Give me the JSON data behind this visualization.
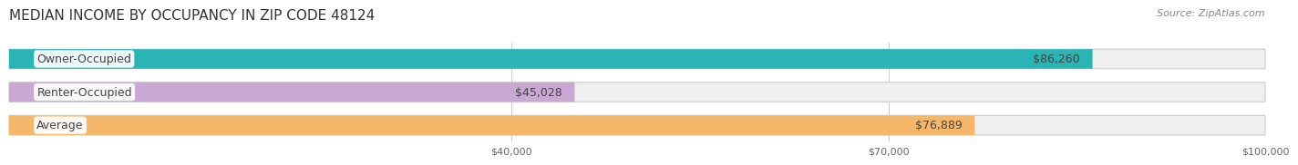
{
  "title": "MEDIAN INCOME BY OCCUPANCY IN ZIP CODE 48124",
  "source": "Source: ZipAtlas.com",
  "categories": [
    "Owner-Occupied",
    "Renter-Occupied",
    "Average"
  ],
  "values": [
    86260,
    45028,
    76889
  ],
  "labels": [
    "$86,260",
    "$45,028",
    "$76,889"
  ],
  "bar_colors": [
    "#2ab5b5",
    "#c9a8d4",
    "#f5b86a"
  ],
  "bar_bg_color": "#efefef",
  "xlim": [
    0,
    100000
  ],
  "xticks": [
    40000,
    70000,
    100000
  ],
  "xtick_labels": [
    "$40,000",
    "$70,000",
    "$100,000"
  ],
  "title_fontsize": 11,
  "source_fontsize": 8,
  "label_fontsize": 9,
  "bar_height": 0.55,
  "background_color": "#ffffff"
}
